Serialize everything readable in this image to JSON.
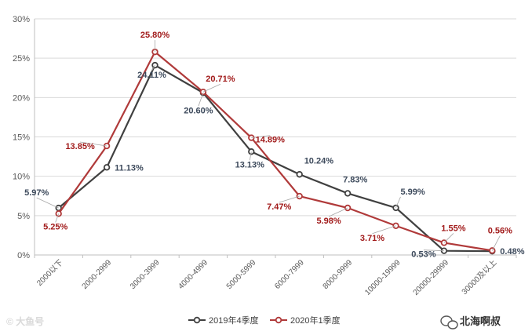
{
  "chart_data": {
    "type": "line",
    "title": "",
    "xlabel": "",
    "ylabel": "",
    "categories": [
      "2000以下",
      "2000-2999",
      "3000-3999",
      "4000-4999",
      "5000-5999",
      "6000-7999",
      "8000-9999",
      "10000-19999",
      "20000-29999",
      "30000及以上"
    ],
    "ylim": [
      0,
      30
    ],
    "yticks": [
      "0%",
      "5%",
      "10%",
      "15%",
      "20%",
      "25%",
      "30%"
    ],
    "grid": true,
    "legend_position": "bottom",
    "series": [
      {
        "name": "2019年4季度",
        "color": "#404040",
        "values": [
          5.97,
          11.13,
          24.11,
          20.6,
          13.13,
          10.24,
          7.83,
          5.99,
          0.53,
          0.48
        ],
        "labels": [
          "5.97%",
          "11.13%",
          "24.11%",
          "20.60%",
          "13.13%",
          "10.24%",
          "7.83%",
          "5.99%",
          "0.53%",
          "0.48%"
        ]
      },
      {
        "name": "2020年1季度",
        "color": "#b03a3a",
        "values": [
          5.25,
          13.85,
          25.8,
          20.71,
          14.89,
          7.47,
          5.98,
          3.71,
          1.55,
          0.56
        ],
        "labels": [
          "5.25%",
          "13.85%",
          "25.80%",
          "20.71%",
          "14.89%",
          "7.47%",
          "5.98%",
          "3.71%",
          "1.55%",
          "0.56%"
        ]
      }
    ]
  },
  "watermarks": {
    "left": "© 大鱼号",
    "right": "北海啊叔",
    "right_icon": "wechat-icon"
  },
  "colors": {
    "series_a_label": "#3d4a5c",
    "series_b_label": "#a11a1a"
  }
}
